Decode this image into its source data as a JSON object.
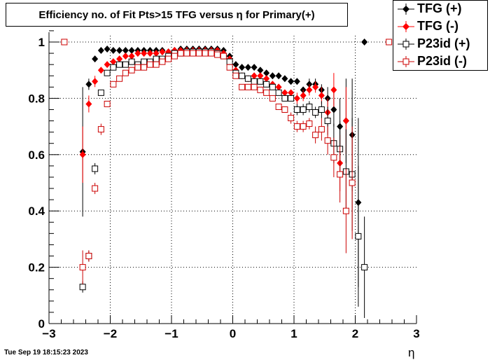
{
  "chart_data": {
    "type": "scatter",
    "title": "Efficiency no. of Fit Pts>15 TFG versus η for Primary(+)",
    "xlabel": "η",
    "ylabel": "",
    "xlim": [
      -3,
      3
    ],
    "ylim": [
      0,
      1.05
    ],
    "x_ticks": [
      "−3",
      "−2",
      "−1",
      "0",
      "1",
      "2",
      "3"
    ],
    "y_ticks": [
      "0",
      "0.2",
      "0.4",
      "0.6",
      "0.8",
      "1"
    ],
    "grid": true,
    "legend_position": "top-right",
    "series": [
      {
        "name": "TFG (+)",
        "color": "#000000",
        "marker": "filled-diamond",
        "points": [
          [
            -2.45,
            0.61,
            0.23
          ],
          [
            -2.35,
            0.85,
            0.02
          ],
          [
            -2.25,
            0.94,
            0.01
          ],
          [
            -2.15,
            0.97,
            0.01
          ],
          [
            -2.05,
            0.975,
            0.01
          ],
          [
            -1.95,
            0.97,
            0.01
          ],
          [
            -1.85,
            0.97,
            0.01
          ],
          [
            -1.75,
            0.97,
            0.01
          ],
          [
            -1.65,
            0.97,
            0.01
          ],
          [
            -1.55,
            0.97,
            0.01
          ],
          [
            -1.45,
            0.97,
            0.01
          ],
          [
            -1.35,
            0.97,
            0.01
          ],
          [
            -1.25,
            0.97,
            0.01
          ],
          [
            -1.15,
            0.97,
            0.01
          ],
          [
            -1.05,
            0.965,
            0.01
          ],
          [
            -0.95,
            0.97,
            0.01
          ],
          [
            -0.85,
            0.975,
            0.01
          ],
          [
            -0.75,
            0.975,
            0.01
          ],
          [
            -0.65,
            0.975,
            0.01
          ],
          [
            -0.55,
            0.975,
            0.01
          ],
          [
            -0.45,
            0.975,
            0.01
          ],
          [
            -0.35,
            0.975,
            0.01
          ],
          [
            -0.25,
            0.975,
            0.01
          ],
          [
            -0.15,
            0.97,
            0.01
          ],
          [
            -0.05,
            0.95,
            0.01
          ],
          [
            0.05,
            0.92,
            0.01
          ],
          [
            0.15,
            0.91,
            0.01
          ],
          [
            0.25,
            0.91,
            0.01
          ],
          [
            0.35,
            0.91,
            0.01
          ],
          [
            0.45,
            0.9,
            0.01
          ],
          [
            0.55,
            0.89,
            0.01
          ],
          [
            0.65,
            0.88,
            0.01
          ],
          [
            0.75,
            0.88,
            0.01
          ],
          [
            0.85,
            0.87,
            0.01
          ],
          [
            0.95,
            0.86,
            0.01
          ],
          [
            1.05,
            0.86,
            0.01
          ],
          [
            1.15,
            0.83,
            0.01
          ],
          [
            1.25,
            0.85,
            0.02
          ],
          [
            1.35,
            0.85,
            0.02
          ],
          [
            1.45,
            0.83,
            0.02
          ],
          [
            1.55,
            0.8,
            0.04
          ],
          [
            1.65,
            0.76,
            0.06
          ],
          [
            1.75,
            0.7,
            0.1
          ],
          [
            1.85,
            0.72,
            0.15
          ],
          [
            1.95,
            0.67,
            0.2
          ],
          [
            2.05,
            0.43,
            0.3
          ],
          [
            2.15,
            1.0,
            0.0
          ]
        ]
      },
      {
        "name": "TFG (-)",
        "color": "#ff0000",
        "marker": "filled-diamond",
        "points": [
          [
            -2.45,
            0.6,
            0.1
          ],
          [
            -2.35,
            0.78,
            0.03
          ],
          [
            -2.25,
            0.86,
            0.02
          ],
          [
            -2.15,
            0.9,
            0.01
          ],
          [
            -2.05,
            0.92,
            0.01
          ],
          [
            -1.95,
            0.93,
            0.01
          ],
          [
            -1.85,
            0.94,
            0.01
          ],
          [
            -1.75,
            0.95,
            0.01
          ],
          [
            -1.65,
            0.95,
            0.01
          ],
          [
            -1.55,
            0.96,
            0.01
          ],
          [
            -1.45,
            0.96,
            0.01
          ],
          [
            -1.35,
            0.96,
            0.01
          ],
          [
            -1.25,
            0.96,
            0.01
          ],
          [
            -1.15,
            0.965,
            0.01
          ],
          [
            -1.05,
            0.965,
            0.01
          ],
          [
            -0.95,
            0.97,
            0.01
          ],
          [
            -0.85,
            0.97,
            0.01
          ],
          [
            -0.75,
            0.97,
            0.01
          ],
          [
            -0.65,
            0.97,
            0.01
          ],
          [
            -0.55,
            0.97,
            0.01
          ],
          [
            -0.45,
            0.97,
            0.01
          ],
          [
            -0.35,
            0.97,
            0.01
          ],
          [
            -0.25,
            0.97,
            0.01
          ],
          [
            -0.15,
            0.96,
            0.01
          ],
          [
            -0.05,
            0.94,
            0.01
          ],
          [
            0.05,
            0.9,
            0.01
          ],
          [
            0.15,
            0.88,
            0.01
          ],
          [
            0.25,
            0.87,
            0.01
          ],
          [
            0.35,
            0.88,
            0.01
          ],
          [
            0.45,
            0.88,
            0.01
          ],
          [
            0.55,
            0.87,
            0.01
          ],
          [
            0.65,
            0.85,
            0.01
          ],
          [
            0.75,
            0.84,
            0.01
          ],
          [
            0.85,
            0.82,
            0.01
          ],
          [
            0.95,
            0.82,
            0.01
          ],
          [
            1.05,
            0.8,
            0.02
          ],
          [
            1.15,
            0.81,
            0.02
          ],
          [
            1.25,
            0.83,
            0.02
          ],
          [
            1.35,
            0.84,
            0.02
          ],
          [
            1.45,
            0.81,
            0.03
          ],
          [
            1.55,
            0.75,
            0.05
          ],
          [
            1.65,
            0.83,
            0.06
          ],
          [
            1.75,
            0.57,
            0.1
          ],
          [
            1.85,
            0.72,
            0.12
          ]
        ]
      },
      {
        "name": "P23id (+)",
        "color": "#000000",
        "marker": "open-square",
        "points": [
          [
            -2.45,
            0.13,
            0.02
          ],
          [
            -2.35,
            0.24,
            0.02
          ],
          [
            -2.25,
            0.55,
            0.02
          ],
          [
            -2.15,
            0.82,
            0.01
          ],
          [
            -2.05,
            0.89,
            0.01
          ],
          [
            -1.95,
            0.91,
            0.01
          ],
          [
            -1.85,
            0.92,
            0.01
          ],
          [
            -1.75,
            0.92,
            0.01
          ],
          [
            -1.65,
            0.93,
            0.01
          ],
          [
            -1.55,
            0.92,
            0.01
          ],
          [
            -1.45,
            0.93,
            0.01
          ],
          [
            -1.35,
            0.93,
            0.01
          ],
          [
            -1.25,
            0.94,
            0.01
          ],
          [
            -1.15,
            0.94,
            0.01
          ],
          [
            -1.05,
            0.95,
            0.01
          ],
          [
            -0.95,
            0.96,
            0.01
          ],
          [
            -0.85,
            0.96,
            0.01
          ],
          [
            -0.75,
            0.965,
            0.01
          ],
          [
            -0.65,
            0.965,
            0.01
          ],
          [
            -0.55,
            0.965,
            0.01
          ],
          [
            -0.45,
            0.965,
            0.01
          ],
          [
            -0.35,
            0.965,
            0.01
          ],
          [
            -0.25,
            0.96,
            0.01
          ],
          [
            -0.15,
            0.95,
            0.01
          ],
          [
            -0.05,
            0.93,
            0.01
          ],
          [
            0.05,
            0.89,
            0.01
          ],
          [
            0.15,
            0.88,
            0.01
          ],
          [
            0.25,
            0.87,
            0.01
          ],
          [
            0.35,
            0.86,
            0.01
          ],
          [
            0.45,
            0.86,
            0.01
          ],
          [
            0.55,
            0.85,
            0.01
          ],
          [
            0.65,
            0.84,
            0.01
          ],
          [
            0.75,
            0.82,
            0.01
          ],
          [
            0.85,
            0.8,
            0.01
          ],
          [
            0.95,
            0.8,
            0.01
          ],
          [
            1.05,
            0.76,
            0.02
          ],
          [
            1.15,
            0.76,
            0.02
          ],
          [
            1.25,
            0.77,
            0.02
          ],
          [
            1.35,
            0.75,
            0.02
          ],
          [
            1.45,
            0.76,
            0.03
          ],
          [
            1.55,
            0.72,
            0.05
          ],
          [
            1.65,
            0.64,
            0.07
          ],
          [
            1.75,
            0.62,
            0.1
          ],
          [
            1.85,
            0.54,
            0.15
          ],
          [
            1.95,
            0.53,
            0.2
          ],
          [
            2.05,
            0.31,
            0.25
          ],
          [
            2.15,
            0.2,
            0.18
          ]
        ]
      },
      {
        "name": "P23id (-)",
        "color": "#cc0000",
        "marker": "open-square",
        "points": [
          [
            -2.75,
            1.0,
            0.0
          ],
          [
            -2.45,
            0.2,
            0.06
          ],
          [
            -2.35,
            0.24,
            0.02
          ],
          [
            -2.25,
            0.48,
            0.02
          ],
          [
            -2.15,
            0.69,
            0.02
          ],
          [
            -2.05,
            0.78,
            0.01
          ],
          [
            -1.95,
            0.85,
            0.01
          ],
          [
            -1.85,
            0.87,
            0.01
          ],
          [
            -1.75,
            0.89,
            0.01
          ],
          [
            -1.65,
            0.9,
            0.01
          ],
          [
            -1.55,
            0.91,
            0.01
          ],
          [
            -1.45,
            0.91,
            0.01
          ],
          [
            -1.35,
            0.92,
            0.01
          ],
          [
            -1.25,
            0.92,
            0.01
          ],
          [
            -1.15,
            0.93,
            0.01
          ],
          [
            -1.05,
            0.94,
            0.01
          ],
          [
            -0.95,
            0.95,
            0.01
          ],
          [
            -0.85,
            0.96,
            0.01
          ],
          [
            -0.75,
            0.96,
            0.01
          ],
          [
            -0.65,
            0.96,
            0.01
          ],
          [
            -0.55,
            0.96,
            0.01
          ],
          [
            -0.45,
            0.96,
            0.01
          ],
          [
            -0.35,
            0.96,
            0.01
          ],
          [
            -0.25,
            0.955,
            0.01
          ],
          [
            -0.15,
            0.95,
            0.01
          ],
          [
            -0.05,
            0.91,
            0.01
          ],
          [
            0.05,
            0.88,
            0.01
          ],
          [
            0.15,
            0.84,
            0.01
          ],
          [
            0.25,
            0.84,
            0.01
          ],
          [
            0.35,
            0.84,
            0.01
          ],
          [
            0.45,
            0.83,
            0.01
          ],
          [
            0.55,
            0.82,
            0.01
          ],
          [
            0.65,
            0.8,
            0.01
          ],
          [
            0.75,
            0.77,
            0.01
          ],
          [
            0.85,
            0.76,
            0.01
          ],
          [
            0.95,
            0.73,
            0.02
          ],
          [
            1.05,
            0.7,
            0.02
          ],
          [
            1.15,
            0.7,
            0.02
          ],
          [
            1.25,
            0.71,
            0.02
          ],
          [
            1.35,
            0.67,
            0.03
          ],
          [
            1.45,
            0.69,
            0.04
          ],
          [
            1.55,
            0.65,
            0.05
          ],
          [
            1.65,
            0.59,
            0.07
          ],
          [
            1.75,
            0.53,
            0.1
          ],
          [
            1.85,
            0.4,
            0.15
          ],
          [
            1.95,
            0.5,
            0.2
          ],
          [
            2.55,
            1.0,
            0.0
          ]
        ]
      }
    ]
  },
  "timestamp": "Tue Sep 19 18:15:23 2023"
}
